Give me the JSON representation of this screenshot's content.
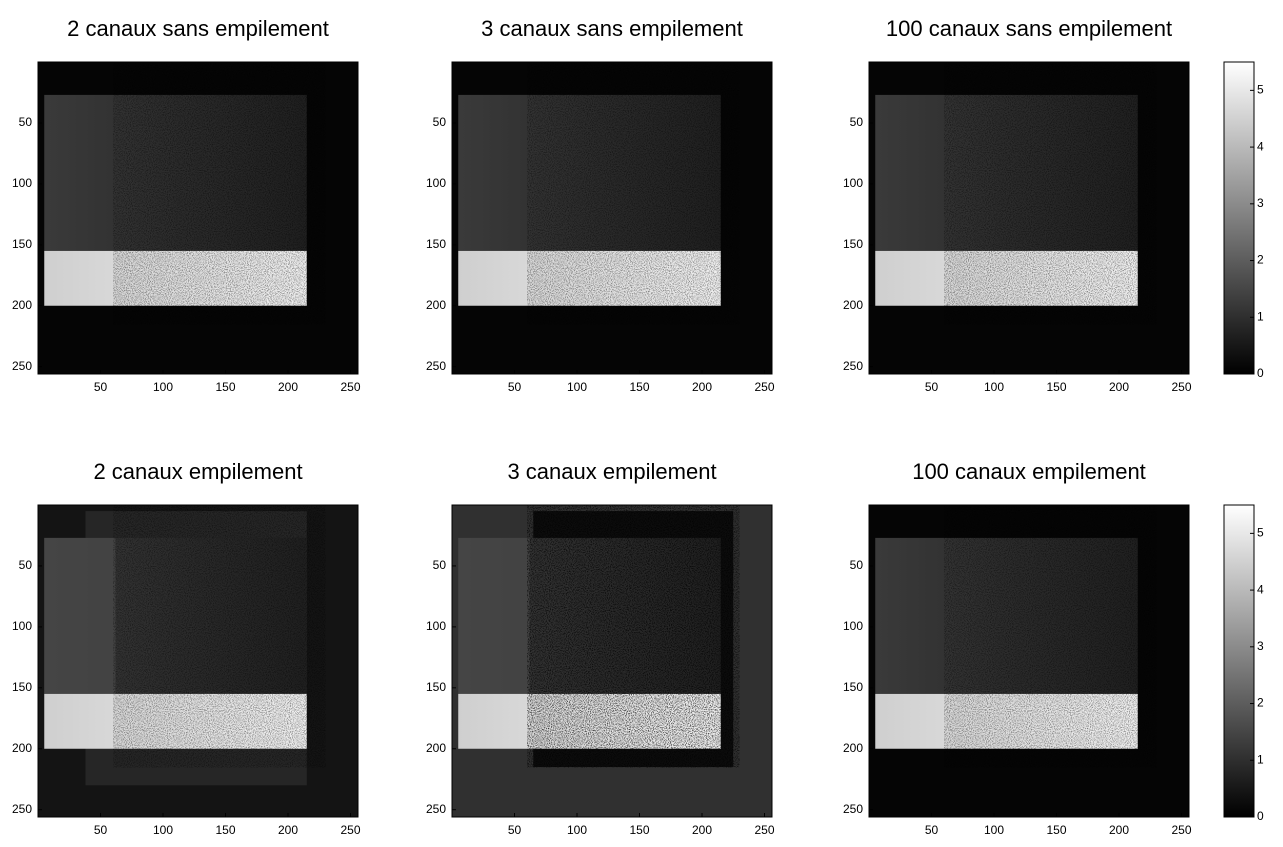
{
  "chart_data": [
    {
      "type": "image",
      "title": "2 canaux sans empilement",
      "xlim": [
        0,
        256
      ],
      "ylim": [
        256,
        0
      ],
      "xticks": [
        50,
        100,
        150,
        200,
        250
      ],
      "yticks": [
        50,
        100,
        150,
        200,
        250
      ]
    },
    {
      "type": "image",
      "title": "3 canaux sans empilement",
      "xlim": [
        0,
        256
      ],
      "ylim": [
        256,
        0
      ],
      "xticks": [
        50,
        100,
        150,
        200,
        250
      ],
      "yticks": [
        50,
        100,
        150,
        200,
        250
      ]
    },
    {
      "type": "image",
      "title": "100 canaux sans empilement",
      "xlim": [
        0,
        256
      ],
      "ylim": [
        256,
        0
      ],
      "xticks": [
        50,
        100,
        150,
        200,
        250
      ],
      "yticks": [
        50,
        100,
        150,
        200,
        250
      ],
      "colorbar": {
        "lim": [
          0,
          5.5
        ],
        "ticks": [
          0,
          1,
          2,
          3,
          4,
          5
        ]
      }
    },
    {
      "type": "image",
      "title": "2 canaux empilement",
      "xlim": [
        0,
        256
      ],
      "ylim": [
        256,
        0
      ],
      "xticks": [
        50,
        100,
        150,
        200,
        250
      ],
      "yticks": [
        50,
        100,
        150,
        200,
        250
      ]
    },
    {
      "type": "image",
      "title": "3 canaux  empilement",
      "xlim": [
        0,
        256
      ],
      "ylim": [
        256,
        0
      ],
      "xticks": [
        50,
        100,
        150,
        200,
        250
      ],
      "yticks": [
        50,
        100,
        150,
        200,
        250
      ]
    },
    {
      "type": "image",
      "title": "100 canaux  empilement",
      "xlim": [
        0,
        256
      ],
      "ylim": [
        256,
        0
      ],
      "xticks": [
        50,
        100,
        150,
        200,
        250
      ],
      "yticks": [
        50,
        100,
        150,
        200,
        250
      ],
      "colorbar": {
        "lim": [
          0,
          5.5
        ],
        "ticks": [
          0,
          1,
          2,
          3,
          4,
          5
        ]
      }
    }
  ]
}
